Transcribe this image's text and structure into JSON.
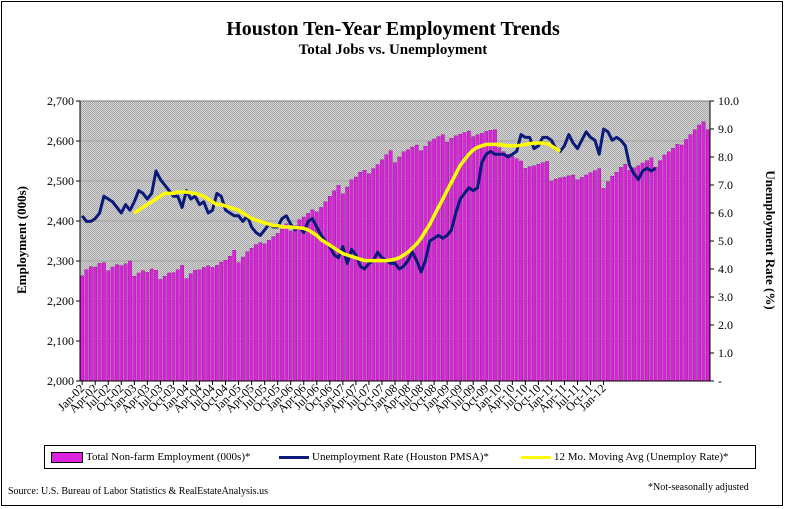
{
  "title": "Houston Ten-Year Employment Trends",
  "subtitle": "Total Jobs vs. Unemployment",
  "source": "Source: U.S. Bureau of Labor Statistics & RealEstateAnalysis.us",
  "footnote": "*Not-seasonally adjusted",
  "legend": {
    "employment": "Total Non-farm Employment (000s)*",
    "unemployment": "Unemployment Rate (Houston PMSA)*",
    "moving_avg": "12 Mo. Moving Avg (Unemploy Rate)*"
  },
  "colors": {
    "bars": "#dd22dd",
    "unemployment_line": "#0a1a7a",
    "moving_avg_line": "#ffff00",
    "plot_background": "#c0c0c0"
  },
  "chart_data": {
    "type": "bar",
    "title": "Houston Ten-Year Employment Trends",
    "subtitle": "Total Jobs vs. Unemployment",
    "ylabel": "Employment (000s)",
    "y2label": "Unemployment Rate (%)",
    "ylim": [
      2000,
      2700
    ],
    "y2lim": [
      0,
      10
    ],
    "y_ticks": [
      "2,000",
      "2,100",
      "2,200",
      "2,300",
      "2,400",
      "2,500",
      "2,600",
      "2,700"
    ],
    "y2_ticks": [
      "-",
      "1.0",
      "2.0",
      "3.0",
      "4.0",
      "5.0",
      "6.0",
      "7.0",
      "8.0",
      "9.0",
      "10.0"
    ],
    "x_tick_labels": [
      "Jan-02",
      "Apr-02",
      "Jul-02",
      "Oct-02",
      "Jan-03",
      "Apr-03",
      "Jul-03",
      "Oct-03",
      "Jan-04",
      "Apr-04",
      "Jul-04",
      "Oct-04",
      "Jan-05",
      "Apr-05",
      "Jul-05",
      "Oct-05",
      "Jan-06",
      "Apr-06",
      "Jul-06",
      "Oct-06",
      "Jan-07",
      "Apr-07",
      "Jul-07",
      "Oct-07",
      "Jan-08",
      "Apr-08",
      "Jul-08",
      "Oct-08",
      "Jan-09",
      "Apr-09",
      "Jul-09",
      "Oct-09",
      "Jan-10",
      "Apr-10",
      "Jul-10",
      "Oct-10",
      "Jan-11",
      "Apr-11",
      "Jul-11",
      "Oct-11",
      "Jan-12"
    ],
    "grid": true,
    "legend_position": "bottom",
    "series": [
      {
        "name": "Total Non-farm Employment (000s)*",
        "type": "bar",
        "axis": "left",
        "values": [
          2263,
          2278,
          2286,
          2285,
          2294,
          2296,
          2276,
          2285,
          2291,
          2288,
          2293,
          2300,
          2262,
          2270,
          2276,
          2272,
          2280,
          2277,
          2254,
          2262,
          2270,
          2271,
          2278,
          2289,
          2256,
          2268,
          2277,
          2278,
          2284,
          2288,
          2284,
          2289,
          2297,
          2302,
          2312,
          2327,
          2296,
          2310,
          2323,
          2332,
          2341,
          2346,
          2343,
          2352,
          2361,
          2369,
          2380,
          2393,
          2375,
          2388,
          2403,
          2410,
          2419,
          2428,
          2423,
          2434,
          2448,
          2462,
          2476,
          2489,
          2468,
          2485,
          2503,
          2510,
          2522,
          2527,
          2518,
          2531,
          2541,
          2553,
          2566,
          2576,
          2546,
          2560,
          2573,
          2578,
          2585,
          2590,
          2576,
          2587,
          2598,
          2605,
          2611,
          2616,
          2597,
          2607,
          2613,
          2617,
          2621,
          2625,
          2611,
          2616,
          2619,
          2624,
          2627,
          2628,
          2583,
          2573,
          2567,
          2562,
          2556,
          2550,
          2532,
          2536,
          2538,
          2542,
          2546,
          2549,
          2500,
          2505,
          2508,
          2510,
          2513,
          2515,
          2503,
          2509,
          2515,
          2521,
          2526,
          2531,
          2482,
          2498,
          2512,
          2522,
          2534,
          2542,
          2527,
          2533,
          2538,
          2545,
          2551,
          2558,
          2535,
          2551,
          2565,
          2573,
          2582,
          2592,
          2590,
          2604,
          2616,
          2628,
          2640,
          2648,
          2628
        ]
      },
      {
        "name": "Unemployment Rate (Houston PMSA)*",
        "type": "line",
        "axis": "right",
        "values": [
          5.9,
          5.7,
          5.7,
          5.8,
          6.0,
          6.6,
          6.5,
          6.4,
          6.2,
          6.0,
          6.3,
          6.1,
          6.4,
          6.8,
          6.7,
          6.5,
          6.7,
          7.5,
          7.2,
          7.0,
          6.8,
          6.6,
          6.6,
          6.2,
          6.8,
          6.5,
          6.6,
          6.3,
          6.4,
          6.0,
          6.1,
          6.7,
          6.6,
          6.1,
          6.0,
          5.9,
          5.9,
          5.7,
          5.9,
          5.5,
          5.3,
          5.2,
          5.4,
          5.6,
          5.5,
          5.5,
          5.8,
          5.9,
          5.6,
          5.4,
          5.5,
          5.3,
          5.7,
          5.8,
          5.5,
          5.2,
          5.0,
          4.8,
          4.5,
          4.4,
          4.8,
          4.2,
          4.7,
          4.5,
          4.1,
          4.0,
          4.2,
          4.3,
          4.6,
          4.4,
          4.3,
          4.2,
          4.2,
          4.0,
          4.1,
          4.3,
          4.6,
          4.3,
          3.9,
          4.3,
          5.0,
          5.1,
          5.2,
          5.1,
          5.2,
          5.4,
          6.0,
          6.5,
          6.7,
          6.9,
          6.8,
          6.9,
          7.8,
          8.1,
          8.2,
          8.1,
          8.1,
          8.1,
          8.0,
          8.1,
          8.2,
          8.8,
          8.7,
          8.7,
          8.3,
          8.4,
          8.7,
          8.7,
          8.6,
          8.3,
          8.2,
          8.4,
          8.8,
          8.5,
          8.3,
          8.6,
          8.9,
          8.7,
          8.6,
          8.1,
          9.0,
          8.9,
          8.6,
          8.7,
          8.6,
          8.4,
          7.7,
          7.4,
          7.2,
          7.5,
          7.6,
          7.5,
          7.6
        ]
      },
      {
        "name": "12 Mo. Moving Avg (Unemploy Rate)*",
        "type": "line",
        "axis": "right",
        "start_label": "Jan-03",
        "values": [
          6.0,
          6.1,
          6.2,
          6.3,
          6.4,
          6.5,
          6.6,
          6.7,
          6.7,
          6.7,
          6.75,
          6.75,
          6.75,
          6.72,
          6.7,
          6.65,
          6.6,
          6.5,
          6.4,
          6.3,
          6.3,
          6.25,
          6.2,
          6.15,
          6.1,
          6.0,
          5.9,
          5.8,
          5.75,
          5.7,
          5.65,
          5.6,
          5.55,
          5.55,
          5.5,
          5.5,
          5.5,
          5.48,
          5.47,
          5.45,
          5.4,
          5.3,
          5.2,
          5.05,
          4.95,
          4.85,
          4.75,
          4.65,
          4.55,
          4.5,
          4.45,
          4.4,
          4.35,
          4.3,
          4.3,
          4.3,
          4.3,
          4.3,
          4.3,
          4.32,
          4.35,
          4.4,
          4.5,
          4.6,
          4.75,
          4.9,
          5.1,
          5.35,
          5.6,
          5.9,
          6.2,
          6.5,
          6.8,
          7.1,
          7.4,
          7.7,
          7.9,
          8.1,
          8.25,
          8.35,
          8.4,
          8.45,
          8.45,
          8.45,
          8.45,
          8.42,
          8.4,
          8.4,
          8.4,
          8.42,
          8.45,
          8.47,
          8.5,
          8.5,
          8.5,
          8.48,
          8.4,
          8.3,
          8.2
        ]
      }
    ]
  }
}
